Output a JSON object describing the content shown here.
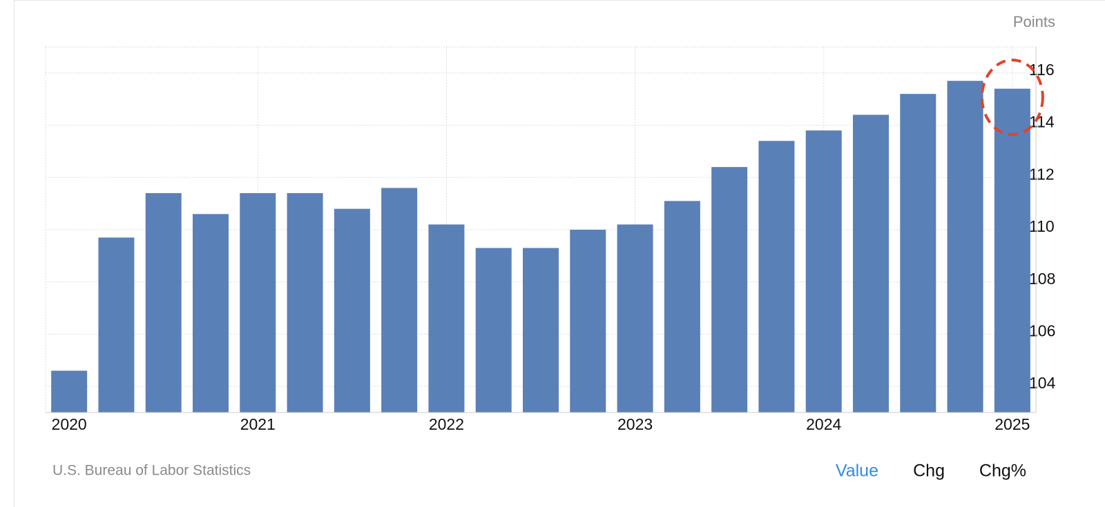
{
  "chart_data": {
    "type": "bar",
    "unit_label": "Points",
    "source": "U.S. Bureau of Labor Statistics",
    "categories": [
      "2020",
      null,
      null,
      null,
      "2021",
      null,
      null,
      null,
      "2022",
      null,
      null,
      null,
      "2023",
      null,
      null,
      null,
      "2024",
      null,
      null,
      null,
      "2025"
    ],
    "values": [
      104.6,
      109.7,
      111.4,
      110.6,
      111.4,
      111.4,
      110.8,
      111.6,
      110.2,
      109.3,
      109.3,
      110.0,
      110.2,
      111.1,
      112.4,
      113.4,
      113.8,
      114.4,
      115.2,
      115.7,
      115.4
    ],
    "color": "#5a80b8",
    "ylim": [
      103,
      117
    ],
    "yticks": [
      104,
      106,
      108,
      110,
      112,
      114,
      116
    ],
    "grid": true
  },
  "tabs": [
    "Value",
    "Chg",
    "Chg%"
  ]
}
